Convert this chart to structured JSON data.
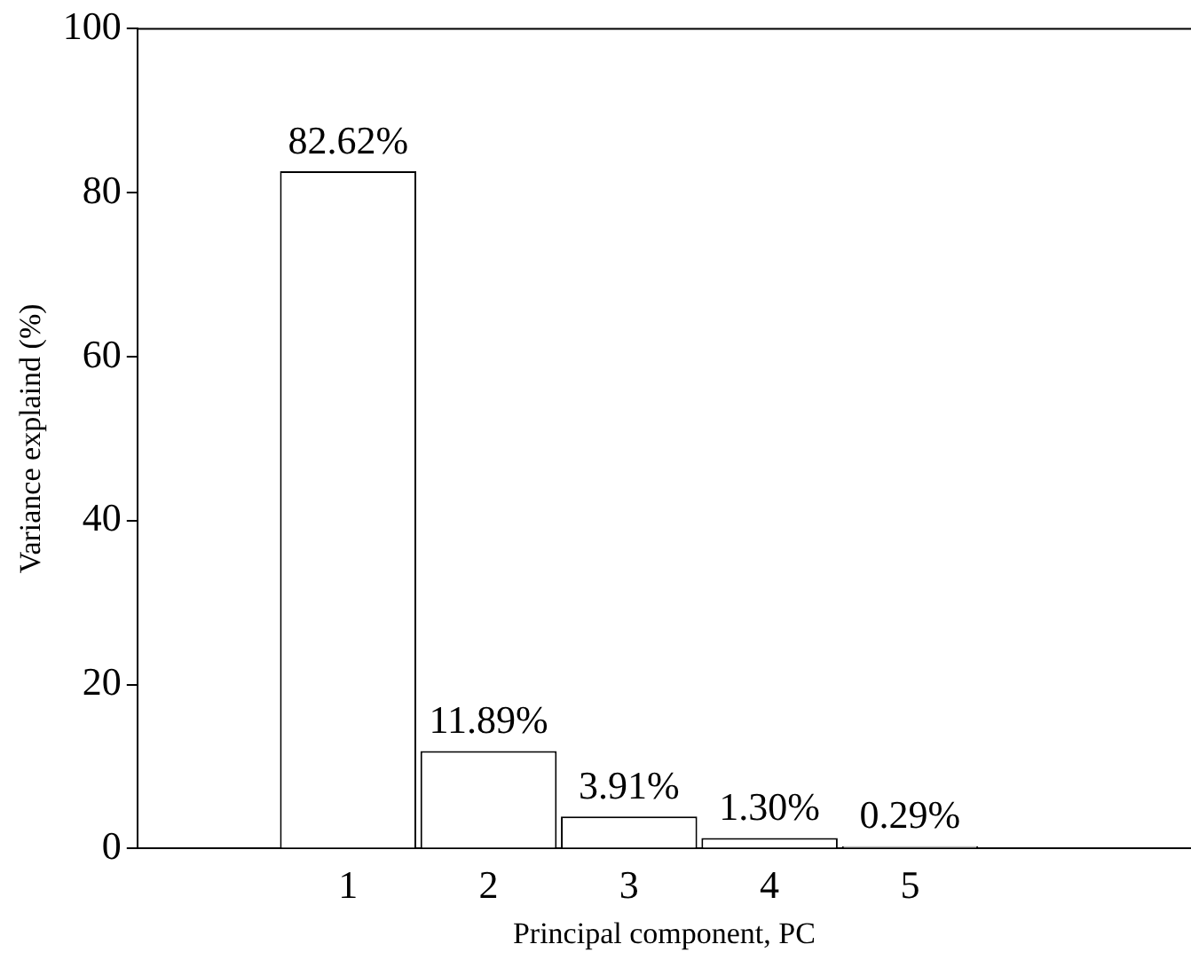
{
  "chart_data": {
    "type": "bar",
    "xlabel": "Principal component, PC",
    "ylabel": "Variance explaind (%)",
    "x": [
      1,
      2,
      3,
      4,
      5
    ],
    "values": [
      82.62,
      11.89,
      3.91,
      1.3,
      0.29
    ],
    "value_labels": [
      "82.62%",
      "11.89%",
      "3.91%",
      "1.30%",
      "0.29%"
    ],
    "color": "#ffffff",
    "xlim": [
      -0.5,
      7
    ],
    "xticks": [
      1,
      2,
      3,
      4,
      5
    ],
    "ylim": [
      0,
      100
    ],
    "yticks": [
      0,
      20,
      40,
      60,
      80,
      100
    ],
    "grid": false,
    "legend": false
  }
}
